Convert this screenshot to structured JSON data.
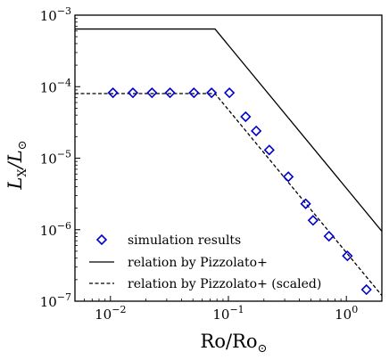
{
  "chart_data": {
    "type": "scatter",
    "title": "",
    "xlabel": "Ro/Ro",
    "xlabel_sub": "⊙",
    "ylabel": "L",
    "ylabel_sub": "X",
    "ylabel_tail": "/L",
    "ylabel_tail_sub": "⊙",
    "x_scale": "log",
    "y_scale": "log",
    "xlim": [
      0.005,
      2.0
    ],
    "ylim": [
      1e-07,
      0.001
    ],
    "x_ticks": [
      {
        "value": 0.01,
        "label": "10",
        "exp": "−2"
      },
      {
        "value": 0.1,
        "label": "10",
        "exp": "−1"
      },
      {
        "value": 1,
        "label": "10",
        "exp": "0"
      }
    ],
    "y_ticks": [
      {
        "value": 1e-07,
        "label": "10",
        "exp": "−7"
      },
      {
        "value": 1e-06,
        "label": "10",
        "exp": "−6"
      },
      {
        "value": 1e-05,
        "label": "10",
        "exp": "−5"
      },
      {
        "value": 0.0001,
        "label": "10",
        "exp": "−4"
      },
      {
        "value": 0.001,
        "label": "10",
        "exp": "−3"
      }
    ],
    "grid": false,
    "legend_position": "lower-left",
    "series": [
      {
        "name": "simulation results",
        "kind": "markers",
        "marker": "diamond",
        "color": "#0000cc",
        "x": [
          0.0105,
          0.0155,
          0.0225,
          0.032,
          0.051,
          0.072,
          0.102,
          0.14,
          0.172,
          0.222,
          0.322,
          0.452,
          0.522,
          0.712,
          1.02,
          1.48
        ],
        "y": [
          8.2e-05,
          8.2e-05,
          8.2e-05,
          8.2e-05,
          8.2e-05,
          8.2e-05,
          8.2e-05,
          3.8e-05,
          2.4e-05,
          1.3e-05,
          5.5e-06,
          2.3e-06,
          1.35e-06,
          8.1e-07,
          4.3e-07,
          1.45e-07
        ]
      },
      {
        "name": "relation by Pizzolato+",
        "kind": "line",
        "dash": "solid",
        "color": "#000000",
        "x": [
          0.005,
          0.077,
          2.0
        ],
        "y": [
          0.00064,
          0.00064,
          9.5e-07
        ]
      },
      {
        "name": "relation by Pizzolato+ (scaled)",
        "kind": "line",
        "dash": "dashed",
        "color": "#000000",
        "x": [
          0.005,
          0.077,
          2.0
        ],
        "y": [
          8e-05,
          8e-05,
          1.2e-07
        ]
      }
    ]
  }
}
